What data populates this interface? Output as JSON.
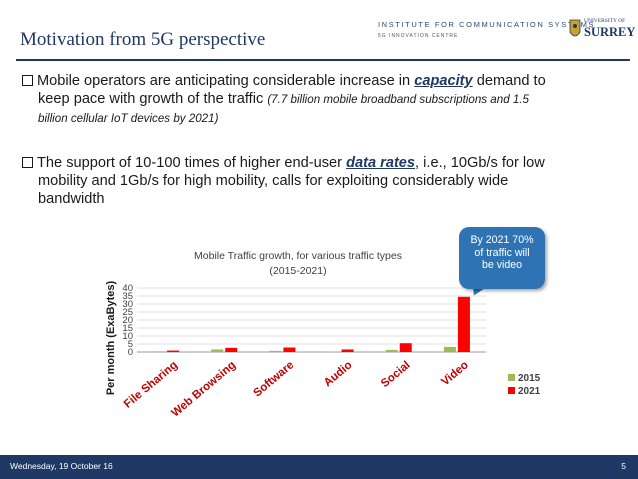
{
  "header": {
    "title": "Motivation from 5G perspective",
    "institute": "INSTITUTE FOR COMMUNICATION SYSTEMS",
    "institute_sub": "5G INNOVATION CENTRE",
    "logo_small": "UNIVERSITY OF",
    "logo_big": "SURREY"
  },
  "bullets": {
    "b1_pre": "Mobile operators are anticipating considerable increase in",
    "b1_kw": "capacity",
    "b1_post": "demand to",
    "b1_line2": "keep pace with growth of the traffic",
    "b1_note_a": "(7.7 billion mobile broadband subscriptions and 1.5",
    "b1_note_b": "billion cellular IoT devices by 2021)",
    "b2_pre": "The support of 10-100 times of higher end-user",
    "b2_kw": "data rates",
    "b2_post": ", i.e., 10Gb/s for low",
    "b2_line2": "mobility and 1Gb/s for high mobility, calls for exploiting considerably wide",
    "b2_line3": "bandwidth"
  },
  "callout": {
    "line1": "By 2021 70%",
    "line2": "of traffic will",
    "line3": "be video"
  },
  "chart_data": {
    "type": "bar",
    "title": "Mobile Traffic growth, for various traffic types (2015-2021)",
    "title_lines": [
      "Mobile Traffic growth, for various traffic types",
      "(2015-2021)"
    ],
    "ylabel": "Per month (ExaBytes)",
    "xlabel": "",
    "ylim": [
      0,
      40
    ],
    "yticks": [
      "0",
      "5",
      "10",
      "15",
      "20",
      "25",
      "30",
      "35",
      "40"
    ],
    "categories": [
      "File Sharing",
      "Web Browsing",
      "Software",
      "Audio",
      "Social",
      "Video"
    ],
    "series": [
      {
        "name": "2015",
        "color": "#9bbb59",
        "values": [
          0.4,
          1.6,
          0.7,
          0.3,
          1.3,
          3.2
        ]
      },
      {
        "name": "2021",
        "color": "#ff0000",
        "values": [
          0.9,
          2.6,
          2.8,
          1.6,
          5.5,
          34.5
        ]
      }
    ],
    "grid": true,
    "legend": "right"
  },
  "footer": {
    "date": "Wednesday, 19 October 16",
    "page": "5"
  }
}
